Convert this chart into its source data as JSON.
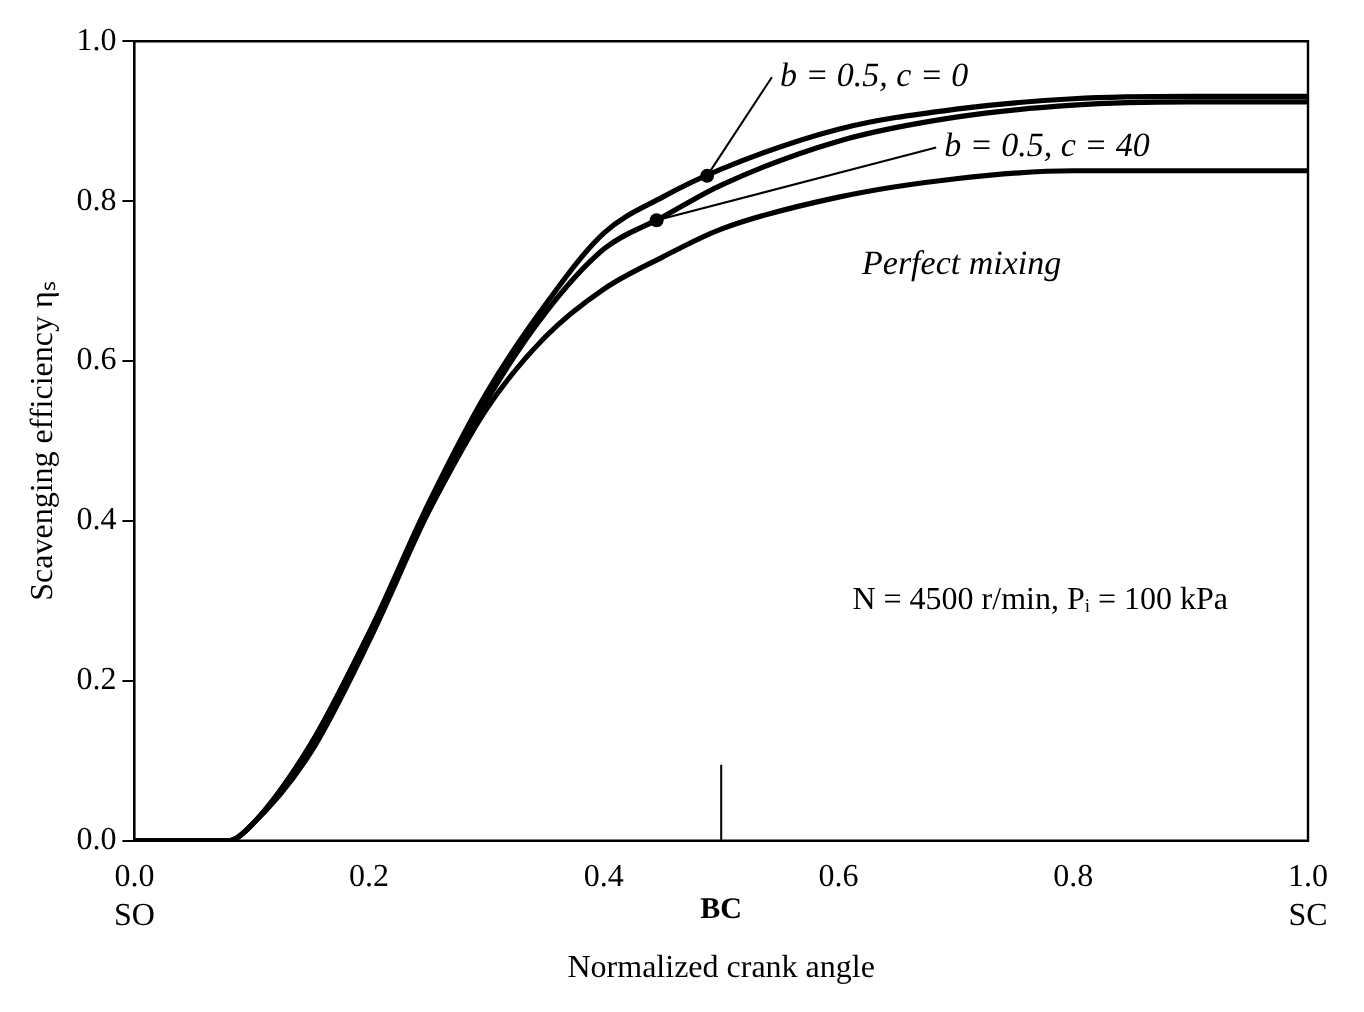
{
  "chart_data": {
    "type": "line",
    "xlabel": "Normalized crank angle",
    "ylabel": "Scavenging efficiency ηₛ",
    "x": [
      0,
      0.08,
      0.1,
      0.15,
      0.2,
      0.25,
      0.3,
      0.35,
      0.4,
      0.45,
      0.5,
      0.6,
      0.7,
      0.8,
      0.9,
      1.0
    ],
    "series": [
      {
        "name": "b = 0.5, c = 0",
        "color": "#000000",
        "values": [
          0,
          0,
          0.02,
          0.12,
          0.26,
          0.42,
          0.56,
          0.67,
          0.76,
          0.805,
          0.84,
          0.89,
          0.915,
          0.928,
          0.931,
          0.931
        ]
      },
      {
        "name": "b = 0.5, c = 40",
        "color": "#000000",
        "values": [
          0,
          0,
          0.02,
          0.11,
          0.25,
          0.41,
          0.55,
          0.66,
          0.74,
          0.78,
          0.82,
          0.875,
          0.905,
          0.92,
          0.924,
          0.924
        ]
      },
      {
        "name": "Perfect mixing",
        "color": "#000000",
        "values": [
          0,
          0,
          0.02,
          0.12,
          0.26,
          0.41,
          0.54,
          0.63,
          0.69,
          0.73,
          0.765,
          0.805,
          0.828,
          0.838,
          0.838,
          0.838
        ]
      }
    ],
    "xlim": [
      0,
      1
    ],
    "ylim": [
      0,
      1
    ],
    "xticks": [
      {
        "value": 0,
        "label": "0.0\nSO"
      },
      {
        "value": 0.2,
        "label": "0.2"
      },
      {
        "value": 0.4,
        "label": "0.4"
      },
      {
        "value": 0.6,
        "label": "0.6"
      },
      {
        "value": 0.8,
        "label": "0.8"
      },
      {
        "value": 1,
        "label": "1.0\nSC"
      }
    ],
    "yticks": [
      {
        "value": 0,
        "label": "0.0"
      },
      {
        "value": 0.2,
        "label": "0.2"
      },
      {
        "value": 0.4,
        "label": "0.4"
      },
      {
        "value": 0.6,
        "label": "0.6"
      },
      {
        "value": 0.8,
        "label": "0.8"
      },
      {
        "value": 1,
        "label": "1.0"
      }
    ],
    "ref_lines": [
      {
        "axis": "x",
        "value": 0.5,
        "label": "BC"
      }
    ],
    "annotations": [
      "N = 4500 r/min, Pᵢ = 100 kPa"
    ],
    "grid": false,
    "legend": false,
    "marker": "none",
    "line_style": "solid"
  }
}
